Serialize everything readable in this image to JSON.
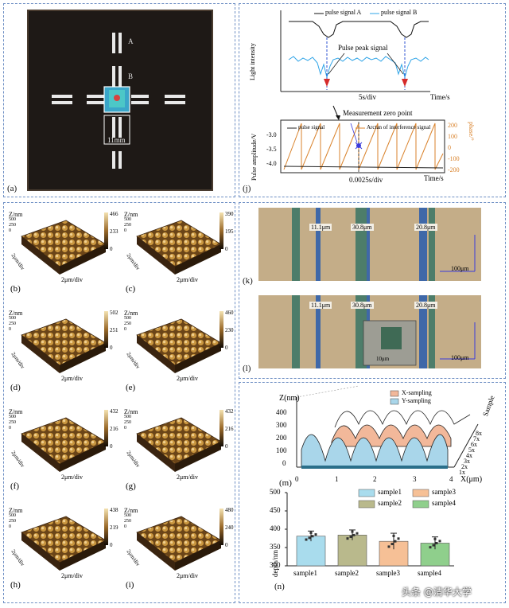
{
  "panel_a": {
    "label": "(a)",
    "markers": {
      "a": "A",
      "b": "B",
      "scale": "11mm"
    }
  },
  "panel_j": {
    "label": "(j)",
    "top": {
      "ylabel": "Light intensity",
      "xlabel": "Time/s",
      "xdiv": "5s/div",
      "legend": [
        "pulse signal A",
        "pulse signal B"
      ],
      "annotation": "Pulse peak signal",
      "colors": {
        "a": "#111111",
        "b": "#2fa4e7",
        "arrow": "#d62b2b"
      }
    },
    "bottom": {
      "ylabel_left": "Pulse amplitude/V",
      "ylabel_right": "phase/°",
      "xlabel": "Time/s",
      "xdiv": "0.0025s/div",
      "annotation": "Measurement zero point",
      "legend": [
        "pulse signal",
        "Arctan of interference signal"
      ],
      "yticks_left": [
        "-3.0",
        "-3.5",
        "-4.0"
      ],
      "yticks_right": [
        "200",
        "100",
        "0",
        "-100",
        "-200"
      ],
      "colors": {
        "phase": "#d9822b",
        "pulse": "#222222",
        "marker": "#3a3adb"
      }
    }
  },
  "afm": {
    "zlabel": "Z/nm",
    "xlabel": "2μm/div",
    "ylabel": "2μm/div",
    "panels": [
      {
        "label": "(b)",
        "zticks": [
          "500",
          "250",
          "0"
        ],
        "cbar": [
          "466",
          "233",
          "0"
        ]
      },
      {
        "label": "(c)",
        "zticks": [
          "500",
          "250",
          "0"
        ],
        "cbar": [
          "390",
          "195",
          "0"
        ]
      },
      {
        "label": "(d)",
        "zticks": [
          "500",
          "250",
          "0"
        ],
        "cbar": [
          "502",
          "251",
          "0"
        ]
      },
      {
        "label": "(e)",
        "zticks": [
          "500",
          "250",
          "0"
        ],
        "cbar": [
          "460",
          "230",
          "0"
        ]
      },
      {
        "label": "(f)",
        "zticks": [
          "500",
          "250",
          "0"
        ],
        "cbar": [
          "432",
          "216",
          "0"
        ]
      },
      {
        "label": "(g)",
        "zticks": [
          "500",
          "250",
          "0"
        ],
        "cbar": [
          "432",
          "216",
          "0"
        ]
      },
      {
        "label": "(h)",
        "zticks": [
          "500",
          "250",
          "0"
        ],
        "cbar": [
          "438",
          "219",
          "0"
        ]
      },
      {
        "label": "(i)",
        "zticks": [
          "500",
          "250",
          "0"
        ],
        "cbar": [
          "480",
          "240",
          "0"
        ]
      }
    ]
  },
  "micro": {
    "k": {
      "label": "(k)",
      "widths": [
        "11.1μm",
        "30.8μm",
        "20.8μm"
      ],
      "scale": "100μm"
    },
    "l": {
      "label": "(l)",
      "widths": [
        "11.1μm",
        "30.8μm",
        "20.8μm"
      ],
      "scale": "100μm",
      "inset_scale": "10μm"
    }
  },
  "panel_m": {
    "label": "(m)",
    "zlabel": "Z(nm)",
    "xlabel": "X(μm)",
    "ylabel": "Sample",
    "zticks": [
      "400",
      "300",
      "200",
      "100",
      "0"
    ],
    "xticks": [
      "0",
      "1",
      "2",
      "3",
      "4"
    ],
    "samples": [
      "1x",
      "2x",
      "3x",
      "4x",
      "5x",
      "6x",
      "7x",
      "8x"
    ],
    "legend": [
      "X-sampling",
      "Y-sampling"
    ],
    "colors": {
      "x": "#f2b89a",
      "y": "#a9d6ea"
    }
  },
  "panel_n": {
    "label": "(n)",
    "ylabel": "depth/nm",
    "yticks": [
      "500",
      "450",
      "400",
      "350",
      "300"
    ],
    "watermark": "头条 @清华大学",
    "chart_data": {
      "type": "bar",
      "categories": [
        "sample1",
        "sample2",
        "sample3",
        "sample4"
      ],
      "values": [
        381,
        384,
        367,
        362
      ],
      "errors": [
        14,
        14,
        22,
        17
      ],
      "ylim": [
        300,
        500
      ],
      "ylabel": "depth/nm",
      "legend": [
        "sample1",
        "sample3",
        "sample2",
        "sample4"
      ],
      "colors": [
        "#a9dced",
        "#b9b98c",
        "#f6c096",
        "#8fcf8c"
      ]
    }
  }
}
